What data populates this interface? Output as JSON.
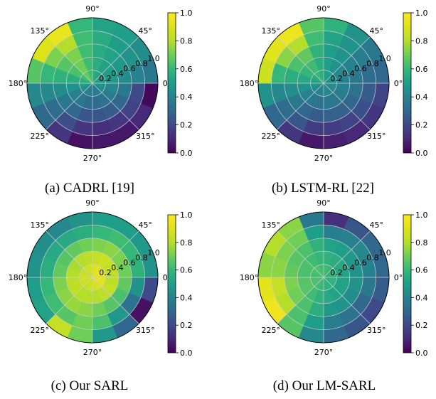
{
  "chart_data": [
    {
      "type": "heatmap",
      "caption": "(a) CADRL [19]",
      "angle_labels": [
        "0°",
        "45°",
        "90°",
        "135°",
        "180°",
        "225°",
        "270°",
        "315°"
      ],
      "radius_labels": [
        "0.2",
        "0.4",
        "0.6",
        "0.8",
        "1.0"
      ],
      "colorbar": {
        "min": 0.0,
        "max": 1.0,
        "ticks": [
          "0.0",
          "0.2",
          "0.4",
          "0.6",
          "0.8",
          "1.0"
        ]
      },
      "rings": 5,
      "sectors": 16,
      "values": [
        [
          0.5,
          0.5,
          0.52,
          0.55,
          0.62,
          0.68,
          0.62,
          0.55,
          0.5,
          0.44,
          0.4,
          0.38,
          0.36,
          0.38,
          0.42,
          0.46
        ],
        [
          0.48,
          0.5,
          0.52,
          0.56,
          0.62,
          0.7,
          0.64,
          0.56,
          0.46,
          0.4,
          0.36,
          0.32,
          0.32,
          0.34,
          0.38,
          0.42
        ],
        [
          0.44,
          0.48,
          0.52,
          0.55,
          0.62,
          0.72,
          0.66,
          0.58,
          0.44,
          0.36,
          0.3,
          0.24,
          0.24,
          0.26,
          0.3,
          0.36
        ],
        [
          0.4,
          0.46,
          0.5,
          0.55,
          0.62,
          0.8,
          0.72,
          0.6,
          0.42,
          0.32,
          0.22,
          0.14,
          0.12,
          0.14,
          0.18,
          0.2
        ],
        [
          0.36,
          0.44,
          0.5,
          0.52,
          0.6,
          0.94,
          0.9,
          0.66,
          0.42,
          0.3,
          0.14,
          0.04,
          0.06,
          0.06,
          0.1,
          0.02
        ]
      ]
    },
    {
      "type": "heatmap",
      "caption": "(b) LSTM-RL [22]",
      "angle_labels": [
        "0°",
        "45°",
        "90°",
        "135°",
        "180°",
        "225°",
        "270°",
        "315°"
      ],
      "radius_labels": [
        "0.2",
        "0.4",
        "0.6",
        "0.8",
        "1.0"
      ],
      "colorbar": {
        "min": 0.0,
        "max": 1.0,
        "ticks": [
          "0.0",
          "0.2",
          "0.4",
          "0.6",
          "0.8",
          "1.0"
        ]
      },
      "rings": 5,
      "sectors": 16,
      "values": [
        [
          0.44,
          0.46,
          0.48,
          0.5,
          0.56,
          0.6,
          0.56,
          0.52,
          0.46,
          0.42,
          0.4,
          0.4,
          0.42,
          0.42,
          0.42,
          0.44
        ],
        [
          0.4,
          0.42,
          0.46,
          0.5,
          0.56,
          0.62,
          0.6,
          0.54,
          0.46,
          0.4,
          0.36,
          0.34,
          0.36,
          0.36,
          0.38,
          0.4
        ],
        [
          0.36,
          0.4,
          0.46,
          0.5,
          0.58,
          0.68,
          0.64,
          0.56,
          0.44,
          0.36,
          0.3,
          0.26,
          0.28,
          0.28,
          0.3,
          0.34
        ],
        [
          0.32,
          0.38,
          0.46,
          0.52,
          0.62,
          0.8,
          0.74,
          0.6,
          0.42,
          0.32,
          0.24,
          0.16,
          0.16,
          0.18,
          0.22,
          0.26
        ],
        [
          0.3,
          0.36,
          0.46,
          0.58,
          0.66,
          0.95,
          0.92,
          0.86,
          0.46,
          0.3,
          0.14,
          0.06,
          0.08,
          0.1,
          0.14,
          0.18
        ]
      ]
    },
    {
      "type": "heatmap",
      "caption": "(c) Our SARL",
      "angle_labels": [
        "0°",
        "45°",
        "90°",
        "135°",
        "180°",
        "225°",
        "270°",
        "315°"
      ],
      "radius_labels": [
        "0.2",
        "0.4",
        "0.6",
        "0.8",
        "1.0"
      ],
      "colorbar": {
        "min": 0.0,
        "max": 1.0,
        "ticks": [
          "0.0",
          "0.2",
          "0.4",
          "0.6",
          "0.8",
          "1.0"
        ]
      },
      "rings": 5,
      "sectors": 16,
      "values": [
        [
          0.92,
          0.94,
          0.92,
          0.9,
          0.88,
          0.86,
          0.84,
          0.86,
          0.88,
          0.86,
          0.84,
          0.86,
          0.88,
          0.9,
          0.92,
          0.92
        ],
        [
          0.82,
          0.84,
          0.86,
          0.84,
          0.82,
          0.8,
          0.78,
          0.8,
          0.82,
          0.82,
          0.8,
          0.8,
          0.8,
          0.82,
          0.84,
          0.82
        ],
        [
          0.7,
          0.72,
          0.74,
          0.72,
          0.7,
          0.68,
          0.66,
          0.68,
          0.72,
          0.74,
          0.76,
          0.74,
          0.7,
          0.66,
          0.64,
          0.68
        ],
        [
          0.58,
          0.6,
          0.62,
          0.6,
          0.56,
          0.54,
          0.54,
          0.56,
          0.6,
          0.62,
          0.66,
          0.7,
          0.64,
          0.48,
          0.34,
          0.46
        ],
        [
          0.46,
          0.48,
          0.5,
          0.5,
          0.46,
          0.42,
          0.44,
          0.46,
          0.5,
          0.52,
          0.84,
          0.7,
          0.48,
          0.3,
          0.04,
          0.2
        ]
      ]
    },
    {
      "type": "heatmap",
      "caption": "(d) Our LM-SARL",
      "angle_labels": [
        "0°",
        "45°",
        "90°",
        "135°",
        "180°",
        "225°",
        "270°",
        "315°"
      ],
      "radius_labels": [
        "0.2",
        "0.4",
        "0.6",
        "0.8",
        "1.0"
      ],
      "colorbar": {
        "min": 0.0,
        "max": 1.0,
        "ticks": [
          "0.0",
          "0.2",
          "0.4",
          "0.6",
          "0.8",
          "1.0"
        ]
      },
      "rings": 5,
      "sectors": 16,
      "values": [
        [
          0.58,
          0.58,
          0.6,
          0.62,
          0.62,
          0.64,
          0.64,
          0.62,
          0.64,
          0.64,
          0.62,
          0.6,
          0.58,
          0.58,
          0.58,
          0.58
        ],
        [
          0.52,
          0.54,
          0.56,
          0.58,
          0.6,
          0.62,
          0.64,
          0.64,
          0.66,
          0.66,
          0.62,
          0.58,
          0.54,
          0.52,
          0.52,
          0.52
        ],
        [
          0.46,
          0.48,
          0.5,
          0.52,
          0.58,
          0.64,
          0.66,
          0.68,
          0.72,
          0.7,
          0.64,
          0.56,
          0.48,
          0.46,
          0.44,
          0.46
        ],
        [
          0.4,
          0.42,
          0.4,
          0.38,
          0.5,
          0.7,
          0.72,
          0.74,
          0.84,
          0.8,
          0.64,
          0.5,
          0.38,
          0.34,
          0.3,
          0.36
        ],
        [
          0.3,
          0.3,
          0.24,
          0.12,
          0.36,
          0.74,
          0.8,
          0.74,
          0.92,
          0.96,
          0.66,
          0.42,
          0.3,
          0.24,
          0.2,
          0.26
        ]
      ]
    }
  ]
}
